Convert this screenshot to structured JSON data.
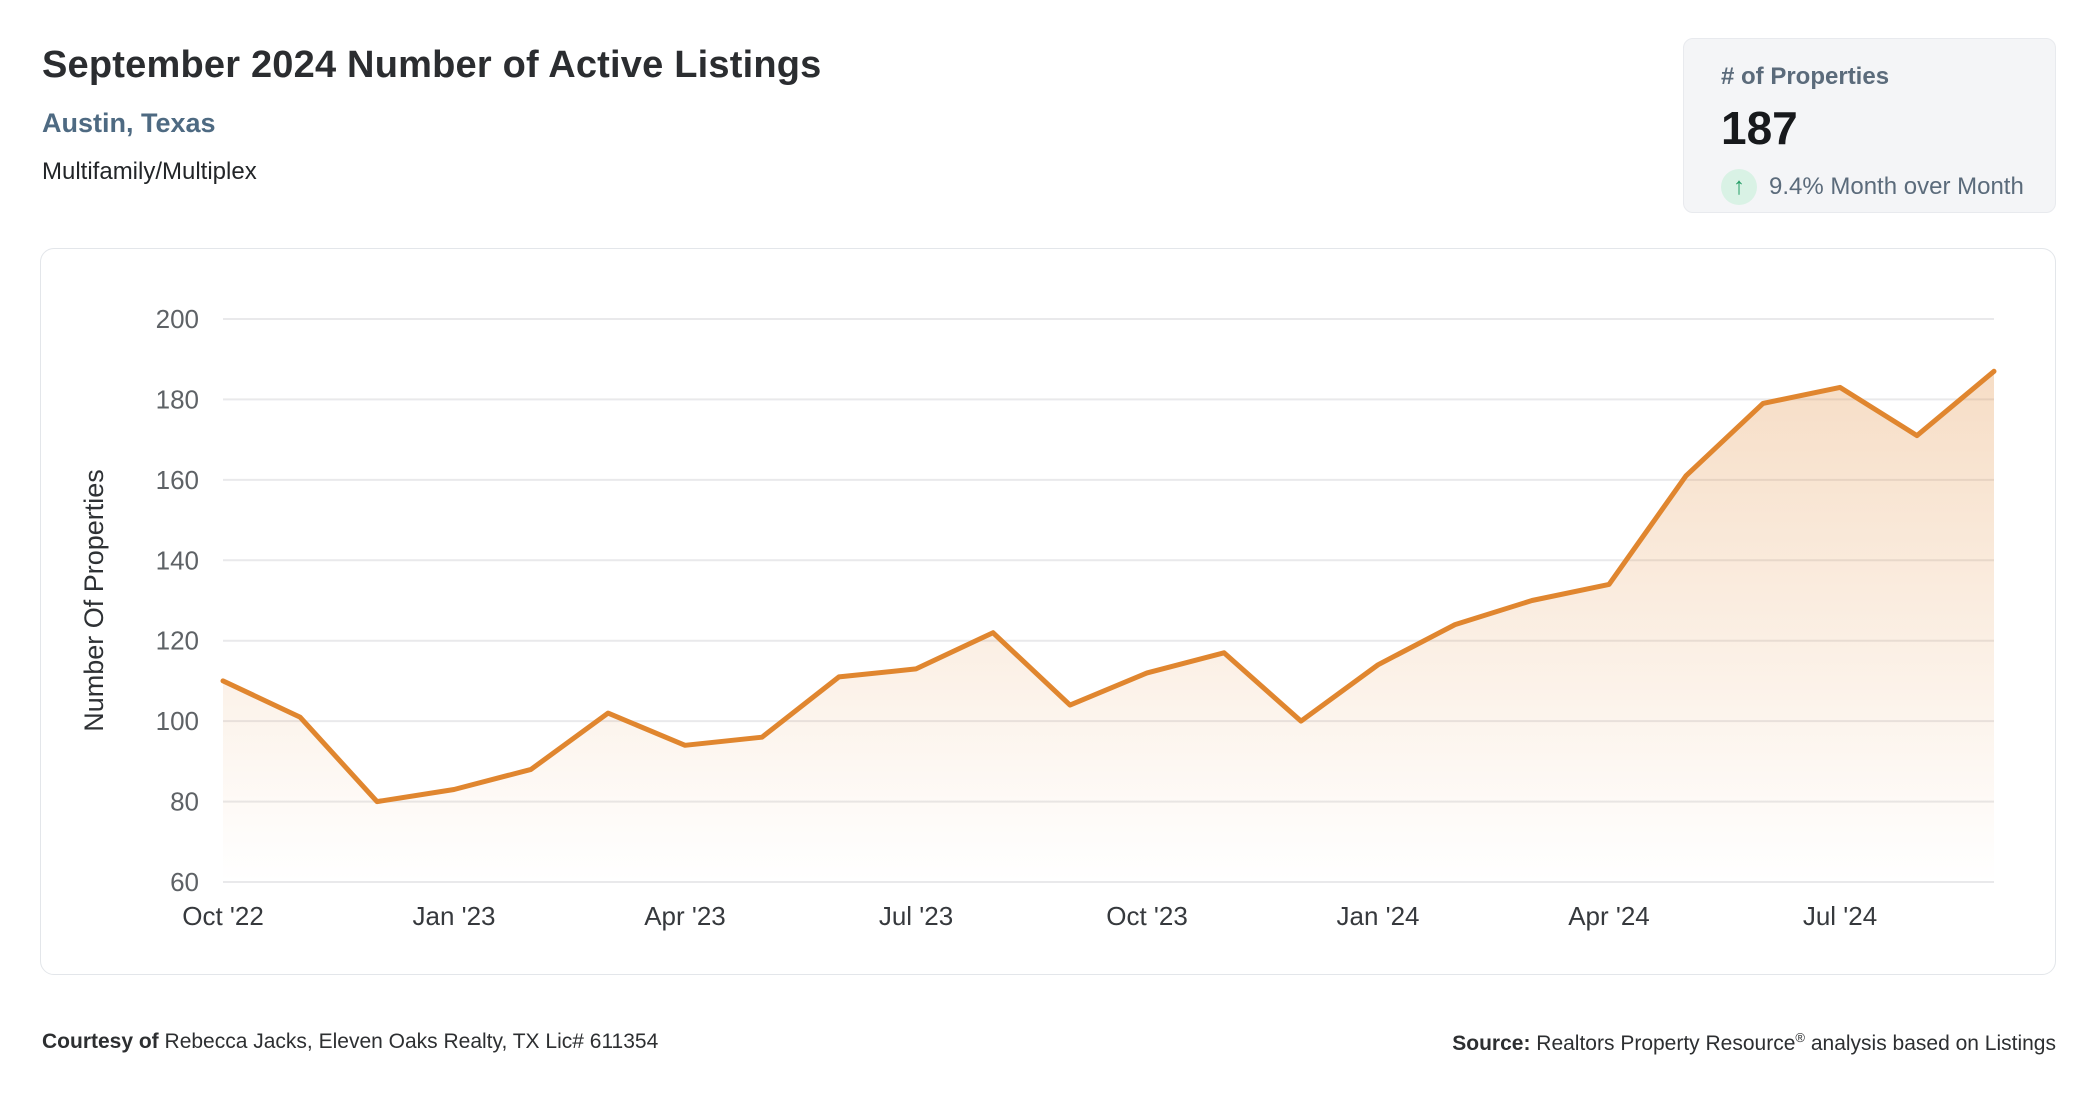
{
  "header": {
    "title": "September 2024 Number of Active Listings",
    "location": "Austin, Texas",
    "property_type": "Multifamily/Multiplex"
  },
  "stat_card": {
    "label": "# of Properties",
    "value": "187",
    "trend_icon": "arrow-up-icon",
    "trend_glyph": "↑",
    "change_text": "9.4% Month over Month",
    "trend_color": "#259d66",
    "trend_bg": "#d9f2e5"
  },
  "chart_data": {
    "type": "area",
    "title": "September 2024 Number of Active Listings",
    "ylabel": "Number Of Properties",
    "xlabel": "",
    "x": [
      "Oct '22",
      "Nov '22",
      "Dec '22",
      "Jan '23",
      "Feb '23",
      "Mar '23",
      "Apr '23",
      "May '23",
      "Jun '23",
      "Jul '23",
      "Aug '23",
      "Sep '23",
      "Oct '23",
      "Nov '23",
      "Dec '23",
      "Jan '24",
      "Feb '24",
      "Mar '24",
      "Apr '24",
      "May '24",
      "Jun '24",
      "Jul '24",
      "Aug '24",
      "Sep '24"
    ],
    "values": [
      110,
      101,
      80,
      83,
      88,
      102,
      94,
      96,
      111,
      113,
      122,
      104,
      112,
      117,
      100,
      114,
      124,
      130,
      134,
      161,
      179,
      183,
      171,
      187
    ],
    "ylim": [
      60,
      200
    ],
    "yticks": [
      60,
      80,
      100,
      120,
      140,
      160,
      180,
      200
    ],
    "xtick_labels_shown": [
      "Oct '22",
      "Jan '23",
      "Apr '23",
      "Jul '23",
      "Oct '23",
      "Jan '24",
      "Apr '24",
      "Jul '24"
    ],
    "grid": "horizontal",
    "legend": "none",
    "line_color": "#e0862f",
    "fill_color_top": "rgba(224,134,49,0.28)",
    "fill_color_bottom": "rgba(224,134,49,0)",
    "gridline_color": "#e9e9eb",
    "ytick_color": "#5e6266",
    "xtick_color": "#36393d",
    "axis_title_color": "#2e3134"
  },
  "footer": {
    "courtesy_label": "Courtesy of",
    "courtesy_text": " Rebecca Jacks, Eleven Oaks Realty, TX Lic# 611354",
    "source_label": "Source:",
    "source_text_pre": " Realtors Property Resource",
    "source_reg": "®",
    "source_text_post": " analysis based on Listings"
  }
}
